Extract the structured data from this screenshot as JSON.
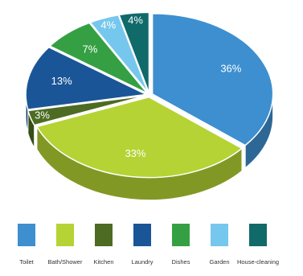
{
  "chart_data": {
    "type": "pie",
    "title": "",
    "categories": [
      "Toilet",
      "Bath/Shower",
      "Kitchen",
      "Laundry",
      "Dishes",
      "Garden",
      "House-cleaning"
    ],
    "values": [
      36,
      33,
      3,
      13,
      7,
      4,
      4
    ],
    "value_labels": [
      "36%",
      "33%",
      "3%",
      "13%",
      "7%",
      "4%",
      "4%"
    ],
    "colors": [
      "#3d8fd0",
      "#b5d334",
      "#4d6b22",
      "#1a5597",
      "#35a043",
      "#76c7ee",
      "#106a6a"
    ],
    "legend_position": "bottom",
    "style": "3d-exploded"
  }
}
